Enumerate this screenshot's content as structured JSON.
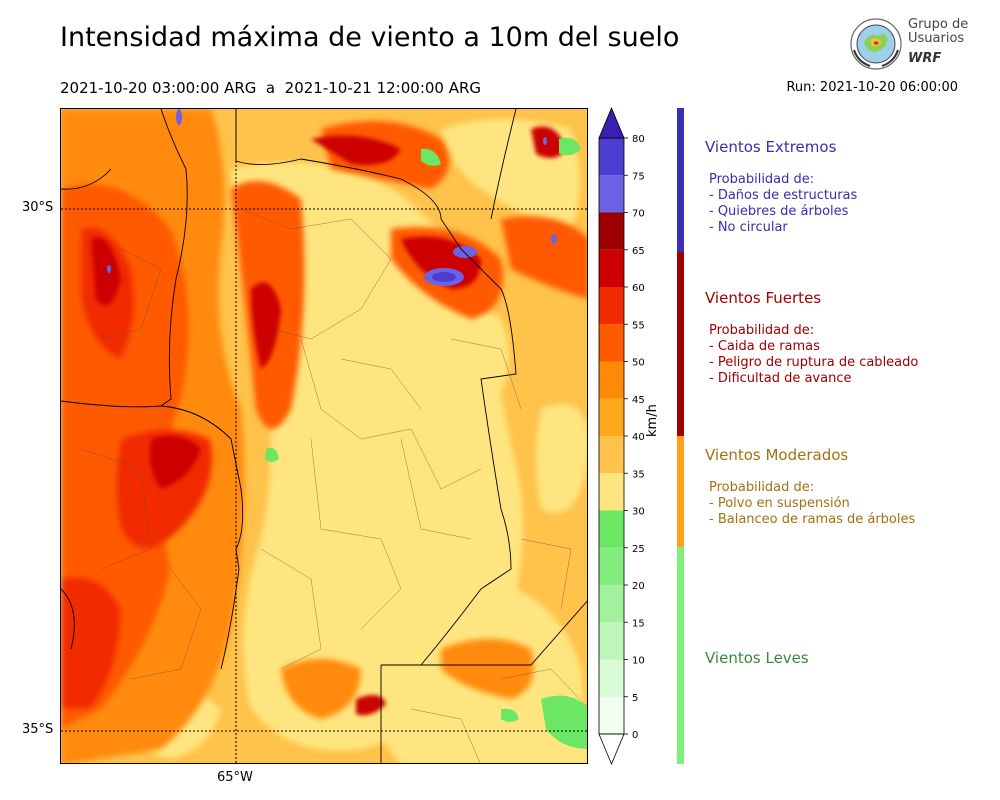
{
  "header": {
    "title": "Intensidad máxima de viento a 10m del suelo",
    "period": "2021-10-20 03:00:00 ARG  a  2021-10-21 12:00:00 ARG",
    "run": "Run: 2021-10-20 06:00:00"
  },
  "logo": {
    "line1": "Grupo de",
    "line2": "Usuarios",
    "line3": "WRF"
  },
  "map": {
    "lat_labels": [
      "30°S",
      "35°S"
    ],
    "lon_labels": [
      "65°W"
    ]
  },
  "colorbar": {
    "unit": "km/h",
    "ticks": [
      0,
      5,
      10,
      15,
      20,
      25,
      30,
      35,
      40,
      45,
      50,
      55,
      60,
      65,
      70,
      75,
      80
    ],
    "tick_labels": [
      "0",
      "5",
      "10",
      "15",
      "20",
      "25",
      "30",
      "35",
      "40",
      "45",
      "50",
      "55",
      "60",
      "65",
      "70",
      "75",
      "80"
    ],
    "colors": [
      "#f0fff0",
      "#d8fbd6",
      "#bcf6b8",
      "#a2f29c",
      "#85ed7e",
      "#6be763",
      "#ffe57f",
      "#ffc24a",
      "#ffa81e",
      "#ff8a0a",
      "#ff5a00",
      "#f22c00",
      "#cc0000",
      "#9e0000",
      "#6b63e3",
      "#4a3fd0",
      "#3a1fb0"
    ]
  },
  "categories": [
    {
      "name": "Vientos Extremos",
      "color": "#3b2cb3",
      "lines": [
        "Probabilidad de:",
        "- Daños de estructuras",
        "- Quiebres de árboles",
        "- No circular"
      ]
    },
    {
      "name": "Vientos Fuertes",
      "color": "#a00000",
      "lines": [
        "Probabilidad de:",
        "- Caida de ramas",
        "- Peligro de ruptura de cableado",
        "- Dificultad de avance"
      ]
    },
    {
      "name": "Vientos Moderados",
      "color": "#a5700e",
      "lines": [
        "Probabilidad de:",
        "- Polvo en suspensión",
        "- Balanceo de ramas de árboles"
      ]
    },
    {
      "name": "Vientos Leves",
      "color": "#3a8a3a",
      "lines": []
    }
  ],
  "category_bar_colors": [
    "#3a2fb5",
    "#a00000",
    "#ffa01e",
    "#7ef07a"
  ]
}
